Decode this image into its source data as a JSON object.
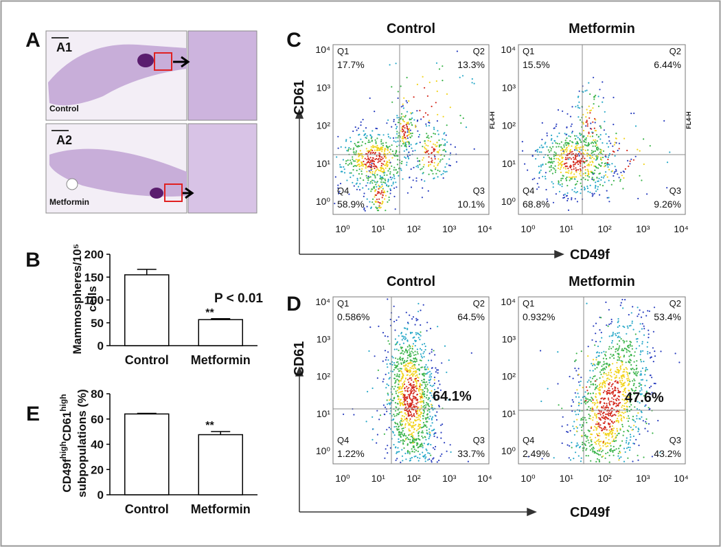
{
  "panel_labels": [
    "A",
    "B",
    "C",
    "D",
    "E"
  ],
  "panel_a": {
    "rows": [
      {
        "label": "A1",
        "group": "Control"
      },
      {
        "label": "A2",
        "group": "Metformin"
      }
    ]
  },
  "flow_panels": [
    {
      "y_label": "CD61",
      "x_label": "CD49f",
      "side_label": "FL4-H",
      "tick_labels": [
        "10⁰",
        "10¹",
        "10²",
        "10³",
        "10⁴"
      ],
      "plots": [
        {
          "title": "Control",
          "quadrants": [
            [
              "Q1",
              "17.7%"
            ],
            [
              "Q2",
              "13.3%"
            ],
            [
              "Q3",
              "10.1%"
            ],
            [
              "Q4",
              "58.9%"
            ]
          ]
        },
        {
          "title": "Metformin",
          "quadrants": [
            [
              "Q1",
              "15.5%"
            ],
            [
              "Q2",
              "6.44%"
            ],
            [
              "Q3",
              "9.26%"
            ],
            [
              "Q4",
              "68.8%"
            ]
          ]
        }
      ]
    },
    {
      "y_label": "CD61",
      "x_label": "CD49f",
      "tick_labels": [
        "10⁰",
        "10¹",
        "10²",
        "10³",
        "10⁴"
      ],
      "plots": [
        {
          "title": "Control",
          "highlight": "64.1%",
          "quadrants": [
            [
              "Q1",
              "0.586%"
            ],
            [
              "Q2",
              "64.5%"
            ],
            [
              "Q3",
              "33.7%"
            ],
            [
              "Q4",
              "1.22%"
            ]
          ]
        },
        {
          "title": "Metformin",
          "highlight": "47.6%",
          "quadrants": [
            [
              "Q1",
              "0.932%"
            ],
            [
              "Q2",
              "53.4%"
            ],
            [
              "Q3",
              "43.2%"
            ],
            [
              "Q4",
              "2.49%"
            ]
          ]
        }
      ]
    }
  ],
  "chart_data": [
    {
      "type": "bar",
      "y_label": [
        "Mammospheres/10⁵",
        "cells"
      ],
      "categories": [
        "Control",
        "Metformin"
      ],
      "values": [
        155,
        57
      ],
      "errors": [
        12,
        2
      ],
      "significance": [
        null,
        "**"
      ],
      "annotation": "P < 0.01",
      "ylim": [
        0,
        200
      ],
      "yticks": [
        0,
        50,
        100,
        150,
        200
      ],
      "color": "#ffffff"
    },
    {
      "type": "bar",
      "y_label_parts": [
        "CD49f",
        "high",
        "CD61",
        "high"
      ],
      "y_label_line2": "subpopulations (%)",
      "categories": [
        "Control",
        "Metformin"
      ],
      "values": [
        64,
        47.6
      ],
      "errors": [
        0.5,
        2.5
      ],
      "significance": [
        null,
        "**"
      ],
      "ylim": [
        0,
        80
      ],
      "yticks": [
        0,
        20,
        40,
        60,
        80
      ],
      "color": "#ffffff"
    }
  ]
}
